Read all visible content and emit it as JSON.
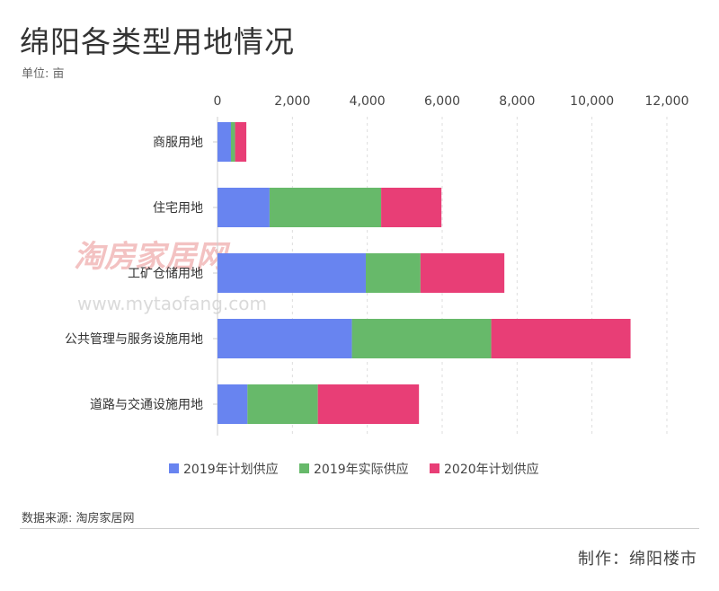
{
  "title": "绵阳各类型用地情况",
  "unit": "单位: 亩",
  "source": "数据来源: 淘房家居网",
  "credit": "制作：绵阳楼市",
  "watermark": {
    "logo": "淘房家居网",
    "url": "www.mytaofang.com"
  },
  "chart_data": {
    "type": "bar",
    "orientation": "horizontal",
    "stacked": true,
    "categories": [
      "商服用地",
      "住宅用地",
      "工矿仓储用地",
      "公共管理与服务设施用地",
      "道路与交通设施用地"
    ],
    "series": [
      {
        "name": "2019年计划供应",
        "color": "#6884f0",
        "values": [
          360,
          1390,
          3960,
          3590,
          800
        ]
      },
      {
        "name": "2019年实际供应",
        "color": "#67b96a",
        "values": [
          110,
          2980,
          1460,
          3720,
          1880
        ]
      },
      {
        "name": "2020年计划供应",
        "color": "#e83e76",
        "values": [
          300,
          1610,
          2240,
          3720,
          2700
        ]
      }
    ],
    "xlim": [
      0,
      12000
    ],
    "xticks": [
      "0",
      "2,000",
      "4,000",
      "6,000",
      "8,000",
      "10,000",
      "12,000"
    ],
    "xtick_values": [
      0,
      2000,
      4000,
      6000,
      8000,
      10000,
      12000
    ],
    "grid": true,
    "axis_position": "top",
    "legend": "bottom"
  }
}
